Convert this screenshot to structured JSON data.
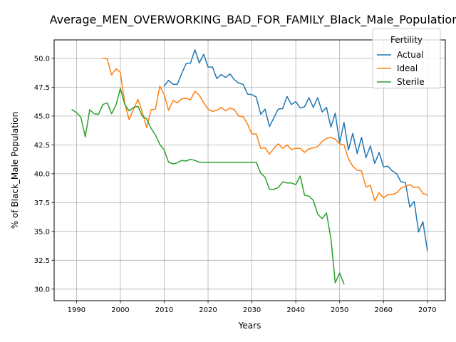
{
  "chart_data": {
    "type": "line",
    "title": "Average_MEN_OVERWORKING_BAD_FOR_FAMILY_Black_Male_Population",
    "xlabel": "Years",
    "ylabel": "% of Black_Male Population",
    "xlim": [
      1984.9,
      2074.1
    ],
    "ylim": [
      29.0,
      51.6
    ],
    "x_ticks": [
      1990,
      2000,
      2010,
      2020,
      2030,
      2040,
      2050,
      2060,
      2070
    ],
    "y_ticks": [
      30.0,
      32.5,
      35.0,
      37.5,
      40.0,
      42.5,
      45.0,
      47.5,
      50.0
    ],
    "x_tick_labels": [
      "1990",
      "2000",
      "2010",
      "2020",
      "2030",
      "2040",
      "2050",
      "2060",
      "2070"
    ],
    "y_tick_labels": [
      "30.0",
      "32.5",
      "35.0",
      "37.5",
      "40.0",
      "42.5",
      "45.0",
      "47.5",
      "50.0"
    ],
    "grid": true,
    "legend": {
      "title": "Fertility",
      "placement": "top-right"
    },
    "series": [
      {
        "name": "Actual",
        "color": "#1f77b4",
        "points": [
          [
            2010,
            47.6
          ],
          [
            2011,
            48.1
          ],
          [
            2012,
            47.75
          ],
          [
            2013,
            47.75
          ],
          [
            2014,
            48.7
          ],
          [
            2015,
            49.55
          ],
          [
            2016,
            49.6
          ],
          [
            2017,
            50.75
          ],
          [
            2018,
            49.6
          ],
          [
            2019,
            50.35
          ],
          [
            2020,
            49.25
          ],
          [
            2021,
            49.25
          ],
          [
            2022,
            48.25
          ],
          [
            2023,
            48.6
          ],
          [
            2024,
            48.35
          ],
          [
            2025,
            48.65
          ],
          [
            2026,
            48.15
          ],
          [
            2027,
            47.85
          ],
          [
            2028,
            47.75
          ],
          [
            2029,
            46.9
          ],
          [
            2030,
            46.85
          ],
          [
            2031,
            46.65
          ],
          [
            2032,
            45.15
          ],
          [
            2033,
            45.6
          ],
          [
            2034,
            44.1
          ],
          [
            2035,
            44.85
          ],
          [
            2036,
            45.6
          ],
          [
            2037,
            45.65
          ],
          [
            2038,
            46.7
          ],
          [
            2039,
            46.0
          ],
          [
            2040,
            46.25
          ],
          [
            2041,
            45.7
          ],
          [
            2042,
            45.8
          ],
          [
            2043,
            46.6
          ],
          [
            2044,
            45.75
          ],
          [
            2045,
            46.6
          ],
          [
            2046,
            45.35
          ],
          [
            2047,
            45.75
          ],
          [
            2048,
            44.05
          ],
          [
            2049,
            45.25
          ],
          [
            2050,
            42.7
          ],
          [
            2051,
            44.45
          ],
          [
            2052,
            42.05
          ],
          [
            2053,
            43.5
          ],
          [
            2054,
            41.75
          ],
          [
            2055,
            43.15
          ],
          [
            2056,
            41.4
          ],
          [
            2057,
            42.4
          ],
          [
            2058,
            40.9
          ],
          [
            2059,
            41.85
          ],
          [
            2060,
            40.6
          ],
          [
            2061,
            40.65
          ],
          [
            2062,
            40.25
          ],
          [
            2063,
            40.0
          ],
          [
            2064,
            39.3
          ],
          [
            2065,
            39.25
          ],
          [
            2066,
            37.1
          ],
          [
            2067,
            37.6
          ],
          [
            2068,
            34.95
          ],
          [
            2069,
            35.85
          ],
          [
            2070,
            33.35
          ]
        ]
      },
      {
        "name": "Ideal",
        "color": "#ff7f0e",
        "points": [
          [
            1996,
            50.0
          ],
          [
            1997,
            49.95
          ],
          [
            1998,
            48.55
          ],
          [
            1999,
            49.1
          ],
          [
            2000,
            48.8
          ],
          [
            2001,
            46.1
          ],
          [
            2002,
            44.7
          ],
          [
            2003,
            45.6
          ],
          [
            2004,
            46.45
          ],
          [
            2005,
            45.35
          ],
          [
            2006,
            44.0
          ],
          [
            2007,
            45.55
          ],
          [
            2008,
            45.6
          ],
          [
            2009,
            47.6
          ],
          [
            2010,
            46.85
          ],
          [
            2011,
            45.5
          ],
          [
            2012,
            46.35
          ],
          [
            2013,
            46.15
          ],
          [
            2014,
            46.5
          ],
          [
            2015,
            46.55
          ],
          [
            2016,
            46.4
          ],
          [
            2017,
            47.15
          ],
          [
            2018,
            46.8
          ],
          [
            2019,
            46.15
          ],
          [
            2020,
            45.6
          ],
          [
            2021,
            45.4
          ],
          [
            2022,
            45.5
          ],
          [
            2023,
            45.75
          ],
          [
            2024,
            45.45
          ],
          [
            2025,
            45.7
          ],
          [
            2026,
            45.55
          ],
          [
            2027,
            45.0
          ],
          [
            2028,
            44.95
          ],
          [
            2029,
            44.3
          ],
          [
            2030,
            43.45
          ],
          [
            2031,
            43.45
          ],
          [
            2032,
            42.2
          ],
          [
            2033,
            42.25
          ],
          [
            2034,
            41.7
          ],
          [
            2035,
            42.2
          ],
          [
            2036,
            42.6
          ],
          [
            2037,
            42.2
          ],
          [
            2038,
            42.5
          ],
          [
            2039,
            42.1
          ],
          [
            2040,
            42.2
          ],
          [
            2041,
            42.2
          ],
          [
            2042,
            41.85
          ],
          [
            2043,
            42.15
          ],
          [
            2044,
            42.25
          ],
          [
            2045,
            42.35
          ],
          [
            2046,
            42.8
          ],
          [
            2047,
            43.05
          ],
          [
            2048,
            43.15
          ],
          [
            2049,
            43.0
          ],
          [
            2050,
            42.6
          ],
          [
            2051,
            42.5
          ],
          [
            2052,
            41.3
          ],
          [
            2053,
            40.65
          ],
          [
            2054,
            40.3
          ],
          [
            2055,
            40.25
          ],
          [
            2056,
            38.85
          ],
          [
            2057,
            39.0
          ],
          [
            2058,
            37.65
          ],
          [
            2059,
            38.35
          ],
          [
            2060,
            37.9
          ],
          [
            2061,
            38.2
          ],
          [
            2062,
            38.2
          ],
          [
            2063,
            38.35
          ],
          [
            2064,
            38.75
          ],
          [
            2065,
            38.9
          ],
          [
            2066,
            39.05
          ],
          [
            2067,
            38.8
          ],
          [
            2068,
            38.85
          ],
          [
            2069,
            38.3
          ],
          [
            2070,
            38.15
          ]
        ]
      },
      {
        "name": "Sterile",
        "color": "#2ca02c",
        "points": [
          [
            1989,
            45.55
          ],
          [
            1990,
            45.3
          ],
          [
            1991,
            44.9
          ],
          [
            1992,
            43.2
          ],
          [
            1993,
            45.55
          ],
          [
            1994,
            45.2
          ],
          [
            1995,
            45.15
          ],
          [
            1996,
            46.0
          ],
          [
            1997,
            46.15
          ],
          [
            1998,
            45.2
          ],
          [
            1999,
            45.95
          ],
          [
            2000,
            47.4
          ],
          [
            2001,
            46.0
          ],
          [
            2002,
            45.45
          ],
          [
            2003,
            45.75
          ],
          [
            2004,
            45.85
          ],
          [
            2005,
            45.0
          ],
          [
            2006,
            44.75
          ],
          [
            2007,
            43.95
          ],
          [
            2008,
            43.35
          ],
          [
            2009,
            42.55
          ],
          [
            2010,
            42.05
          ],
          [
            2011,
            41.0
          ],
          [
            2012,
            40.85
          ],
          [
            2013,
            40.95
          ],
          [
            2014,
            41.15
          ],
          [
            2015,
            41.1
          ],
          [
            2016,
            41.25
          ],
          [
            2017,
            41.15
          ],
          [
            2018,
            41.0
          ],
          [
            2019,
            41.0
          ],
          [
            2020,
            41.0
          ],
          [
            2021,
            41.0
          ],
          [
            2022,
            41.0
          ],
          [
            2023,
            41.0
          ],
          [
            2024,
            41.0
          ],
          [
            2025,
            41.0
          ],
          [
            2026,
            41.0
          ],
          [
            2027,
            41.0
          ],
          [
            2028,
            41.0
          ],
          [
            2029,
            41.0
          ],
          [
            2030,
            41.0
          ],
          [
            2031,
            41.0
          ],
          [
            2032,
            40.05
          ],
          [
            2033,
            39.7
          ],
          [
            2034,
            38.65
          ],
          [
            2035,
            38.65
          ],
          [
            2036,
            38.8
          ],
          [
            2037,
            39.3
          ],
          [
            2038,
            39.2
          ],
          [
            2039,
            39.2
          ],
          [
            2040,
            39.05
          ],
          [
            2041,
            39.8
          ],
          [
            2042,
            38.15
          ],
          [
            2043,
            38.05
          ],
          [
            2044,
            37.7
          ],
          [
            2045,
            36.5
          ],
          [
            2046,
            36.1
          ],
          [
            2047,
            36.6
          ],
          [
            2048,
            34.4
          ],
          [
            2049,
            30.55
          ],
          [
            2050,
            31.4
          ],
          [
            2051,
            30.45
          ]
        ]
      }
    ]
  }
}
